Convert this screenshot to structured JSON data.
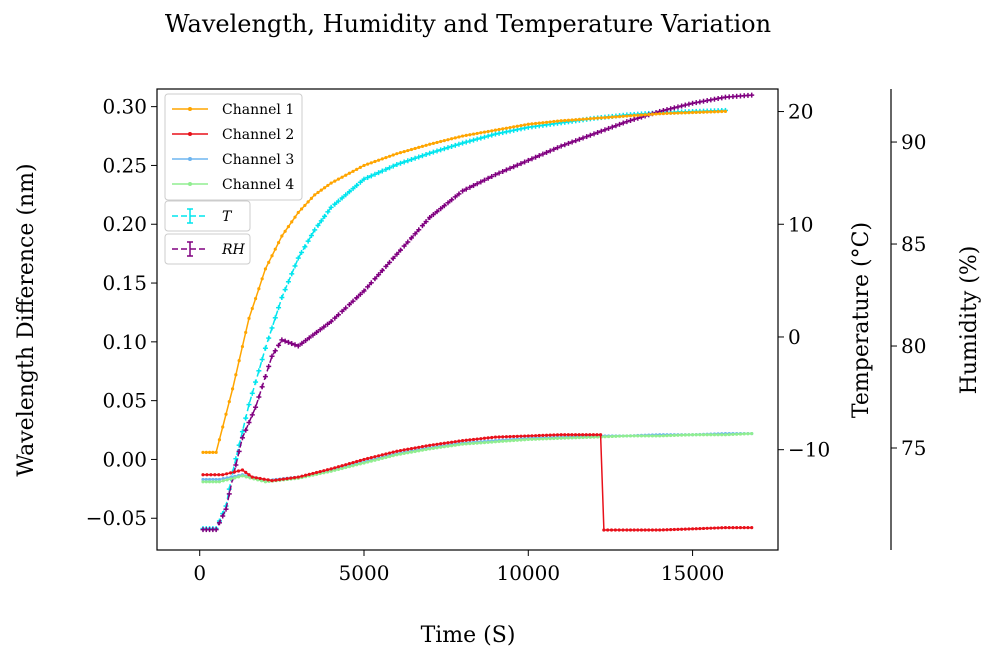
{
  "chart_data": {
    "type": "line",
    "title": "Wavelength, Humidity and Temperature Variation",
    "xlabel": "Time (S)",
    "ylabel": "Wavelength Difference (nm)",
    "y2label": "Temperature (°C)",
    "y3label": "Humidity (%)",
    "xlim": [
      -1300,
      17600
    ],
    "ylim": [
      -0.077,
      0.315
    ],
    "y2lim": [
      -18.9,
      22.0
    ],
    "y3lim": [
      70.0,
      92.6
    ],
    "xticks": [
      0,
      5000,
      10000,
      15000
    ],
    "xtick_labels": [
      "0",
      "5000",
      "10000",
      "15000"
    ],
    "yticks": [
      -0.05,
      0.0,
      0.05,
      0.1,
      0.15,
      0.2,
      0.25,
      0.3
    ],
    "ytick_labels": [
      "−0.05",
      "0.00",
      "0.05",
      "0.10",
      "0.15",
      "0.20",
      "0.25",
      "0.30"
    ],
    "y2ticks": [
      -10,
      0,
      10,
      20
    ],
    "y2tick_labels": [
      "−10",
      "0",
      "10",
      "20"
    ],
    "y3ticks": [
      75,
      80,
      85,
      90
    ],
    "y3tick_labels": [
      "75",
      "80",
      "85",
      "90"
    ],
    "series": [
      {
        "name": "Channel 1",
        "axis": "y",
        "color": "#FFA500",
        "style": "solid",
        "x": [
          100,
          500,
          1000,
          1500,
          2000,
          2500,
          3000,
          3500,
          4000,
          5000,
          6000,
          7000,
          8000,
          9000,
          10000,
          11000,
          12000,
          13000,
          14000,
          15000,
          16000
        ],
        "y": [
          0.006,
          0.006,
          0.06,
          0.12,
          0.162,
          0.19,
          0.21,
          0.225,
          0.235,
          0.25,
          0.26,
          0.268,
          0.275,
          0.28,
          0.285,
          0.288,
          0.29,
          0.292,
          0.294,
          0.295,
          0.296
        ]
      },
      {
        "name": "Channel 2",
        "axis": "y",
        "color": "#E8101A",
        "style": "solid",
        "x": [
          100,
          700,
          1300,
          1600,
          2200,
          3000,
          4000,
          5000,
          6000,
          7000,
          8000,
          9000,
          10000,
          11000,
          12200,
          12300,
          13000,
          14000,
          15000,
          16000,
          16800
        ],
        "y": [
          -0.013,
          -0.013,
          -0.009,
          -0.015,
          -0.018,
          -0.015,
          -0.008,
          0.0,
          0.007,
          0.012,
          0.016,
          0.019,
          0.02,
          0.021,
          0.021,
          -0.06,
          -0.06,
          -0.06,
          -0.059,
          -0.058,
          -0.058
        ]
      },
      {
        "name": "Channel 3",
        "axis": "y",
        "color": "#6EB5F0",
        "style": "solid",
        "x": [
          100,
          600,
          1300,
          2000,
          3000,
          4000,
          5000,
          6000,
          7000,
          8000,
          9000,
          10000,
          11000,
          12000,
          13000,
          14000,
          15000,
          16000,
          16800
        ],
        "y": [
          -0.017,
          -0.017,
          -0.013,
          -0.018,
          -0.015,
          -0.009,
          -0.002,
          0.005,
          0.01,
          0.014,
          0.016,
          0.018,
          0.019,
          0.02,
          0.02,
          0.021,
          0.021,
          0.022,
          0.022
        ]
      },
      {
        "name": "Channel 4",
        "axis": "y",
        "color": "#90EE90",
        "style": "solid",
        "x": [
          100,
          600,
          1300,
          2000,
          3000,
          4000,
          5000,
          6000,
          7000,
          8000,
          9000,
          10000,
          11000,
          12000,
          13000,
          14000,
          15000,
          16000,
          16800
        ],
        "y": [
          -0.019,
          -0.019,
          -0.014,
          -0.019,
          -0.016,
          -0.01,
          -0.003,
          0.004,
          0.009,
          0.013,
          0.015,
          0.017,
          0.018,
          0.019,
          0.02,
          0.02,
          0.021,
          0.021,
          0.022
        ]
      },
      {
        "name": "T",
        "axis": "y2",
        "color": "#00E5EE",
        "style": "dashed",
        "x": [
          100,
          500,
          800,
          1000,
          1500,
          2000,
          2500,
          3000,
          3500,
          4000,
          5000,
          6000,
          7000,
          8000,
          9000,
          10000,
          11000,
          12000,
          13000,
          14000,
          15000,
          16000
        ],
        "y": [
          -17.0,
          -17.0,
          -15.0,
          -12.0,
          -6.0,
          -1.0,
          3.5,
          7.0,
          9.5,
          11.5,
          14.0,
          15.3,
          16.3,
          17.2,
          18.0,
          18.6,
          19.0,
          19.4,
          19.7,
          19.9,
          20.0,
          20.1
        ]
      },
      {
        "name": "RH",
        "axis": "y3",
        "color": "#800080",
        "style": "dashed",
        "x": [
          100,
          500,
          800,
          1000,
          1300,
          1700,
          2000,
          2200,
          2500,
          3000,
          4000,
          5000,
          6000,
          7000,
          8000,
          9000,
          10000,
          11000,
          12000,
          13000,
          14000,
          15000,
          16000,
          16800
        ],
        "y": [
          71.0,
          71.0,
          72.0,
          73.5,
          75.5,
          77.0,
          78.5,
          79.5,
          80.3,
          80.0,
          81.2,
          82.7,
          84.5,
          86.3,
          87.6,
          88.4,
          89.1,
          89.8,
          90.4,
          91.0,
          91.5,
          91.9,
          92.2,
          92.3
        ]
      }
    ]
  }
}
